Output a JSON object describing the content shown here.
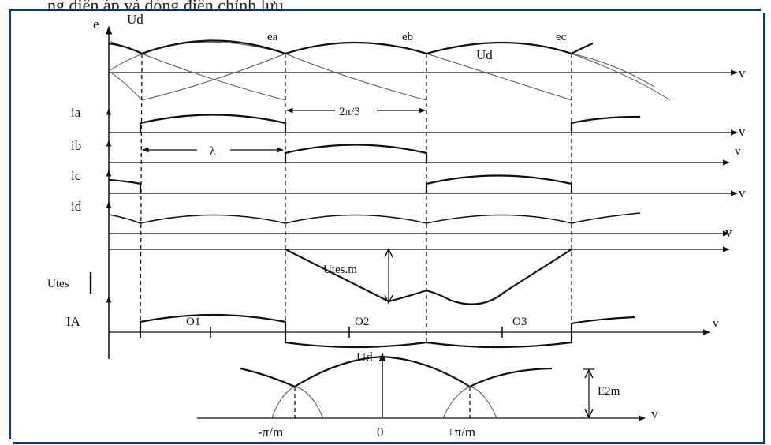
{
  "caption": "ng diện áp và dòng điện chỉnh lưu",
  "labels": {
    "e_axis": "e",
    "ud_top": "Ud",
    "ea": "ea",
    "eb": "eb",
    "ec": "ec",
    "ud_mid": "Ud",
    "v1": "v",
    "ia": "ia",
    "two_pi_3": "2π/3",
    "v2": "v",
    "ib": "ib",
    "lambda": "λ",
    "v3": "v",
    "ic": "ic",
    "v4": "v",
    "id": "id",
    "v5": "v",
    "utes_m": "Utes.m",
    "utes": "Utes",
    "IA": "IA",
    "o1": "O1",
    "o2": "O2",
    "o3": "O3",
    "v6": "v",
    "ud_bottom": "Ud",
    "e2m": "E2m",
    "v7": "v",
    "minus_pi_m": "-π/m",
    "zero": "0",
    "plus_pi_m": "+π/m"
  },
  "colors": {
    "frame": "#0a3a7a",
    "ink": "#111111",
    "thin": "#555555"
  }
}
